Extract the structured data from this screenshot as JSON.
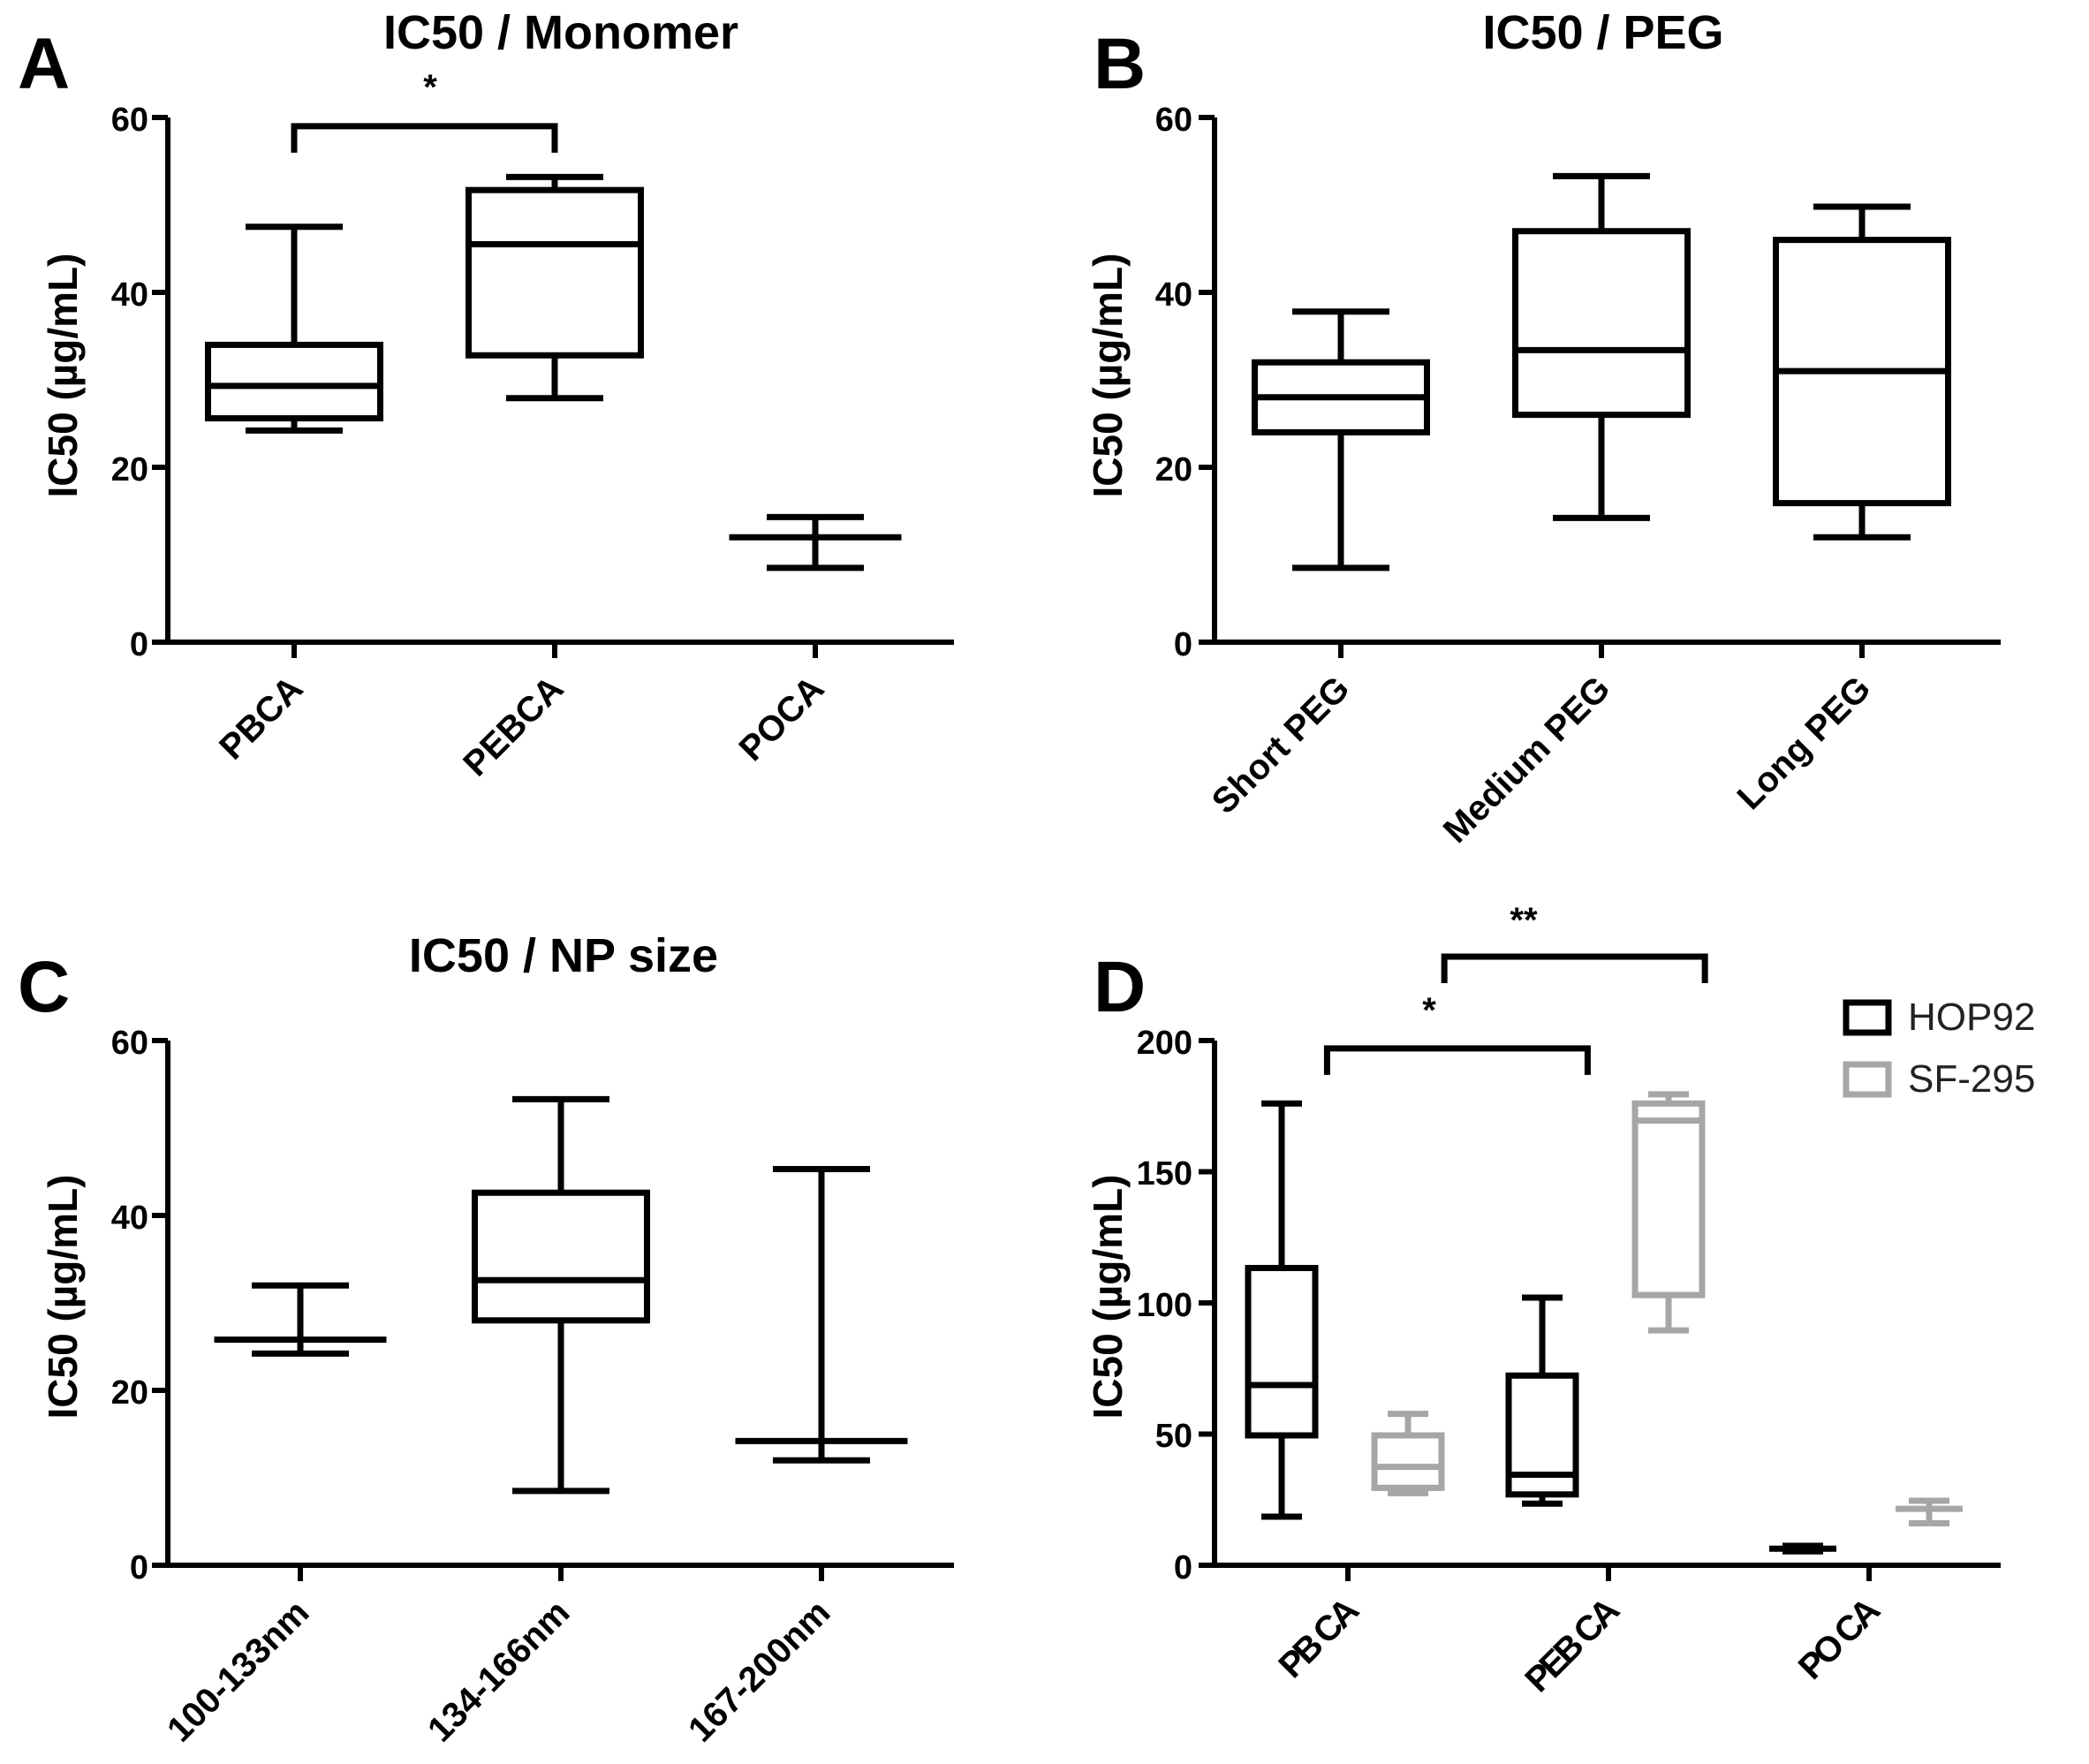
{
  "chart_data": [
    {
      "type": "box",
      "panel_label": "A",
      "title": "IC50 / Monomer",
      "ylabel": "IC50  (µg/mL)",
      "ylim": [
        0,
        60
      ],
      "yticks": [
        "0",
        "20",
        "40",
        "60"
      ],
      "categories": [
        "PBCA",
        "PEBCA",
        "POCA"
      ],
      "series": [
        {
          "name": "",
          "color": "#000000",
          "boxes": [
            {
              "min": 24.2,
              "q1": 25.6,
              "median": 29.3,
              "q3": 34.0,
              "max": 47.5
            },
            {
              "min": 27.9,
              "q1": 32.8,
              "median": 45.5,
              "q3": 51.7,
              "max": 53.2
            },
            {
              "min": 8.5,
              "q1": 12.0,
              "median": 12.0,
              "q3": 12.0,
              "max": 14.3
            }
          ]
        }
      ],
      "significance": [
        {
          "from": 0,
          "to": 1,
          "label": "*",
          "level": 59.0
        }
      ]
    },
    {
      "type": "box",
      "panel_label": "B",
      "title": "IC50 / PEG",
      "ylabel": "IC50  (µg/mL)",
      "ylim": [
        0,
        60
      ],
      "yticks": [
        "0",
        "20",
        "40",
        "60"
      ],
      "categories": [
        "Short PEG",
        "Medium PEG",
        "Long PEG"
      ],
      "series": [
        {
          "name": "",
          "color": "#000000",
          "boxes": [
            {
              "min": 8.5,
              "q1": 24.0,
              "median": 28.0,
              "q3": 32.0,
              "max": 37.8
            },
            {
              "min": 14.2,
              "q1": 26.0,
              "median": 33.4,
              "q3": 47.0,
              "max": 53.3
            },
            {
              "min": 12.0,
              "q1": 15.9,
              "median": 31.0,
              "q3": 46.0,
              "max": 49.8
            }
          ]
        }
      ],
      "significance": []
    },
    {
      "type": "box",
      "panel_label": "C",
      "title": "IC50 / NP size",
      "ylabel": "IC50  (µg/mL)",
      "ylim": [
        0,
        60
      ],
      "yticks": [
        "0",
        "20",
        "40",
        "60"
      ],
      "categories": [
        "100-133nm",
        "134-166nm",
        "167-200nm"
      ],
      "series": [
        {
          "name": "",
          "color": "#000000",
          "boxes": [
            {
              "min": 24.2,
              "q1": 25.8,
              "median": 25.8,
              "q3": 25.8,
              "max": 32.0
            },
            {
              "min": 8.5,
              "q1": 28.0,
              "median": 32.6,
              "q3": 42.6,
              "max": 53.3
            },
            {
              "min": 12.0,
              "q1": 14.2,
              "median": 14.2,
              "q3": 14.2,
              "max": 45.3
            }
          ]
        }
      ],
      "significance": []
    },
    {
      "type": "box",
      "panel_label": "D",
      "title": "",
      "ylabel": "IC50  (µg/mL)",
      "ylim": [
        0,
        200
      ],
      "yticks": [
        "0",
        "50",
        "100",
        "150",
        "200"
      ],
      "categories": [
        "PB CA",
        "PEB CA",
        "PO CA"
      ],
      "series": [
        {
          "name": "HOP92",
          "color": "#000000",
          "boxes": [
            {
              "min": 18.5,
              "q1": 49.5,
              "median": 68.7,
              "q3": 113.3,
              "max": 176.0
            },
            {
              "min": 23.5,
              "q1": 27.0,
              "median": 34.5,
              "q3": 72.3,
              "max": 102.0
            },
            {
              "min": 5.3,
              "q1": 6.3,
              "median": 6.3,
              "q3": 6.3,
              "max": 7.4
            }
          ]
        },
        {
          "name": "SF-295",
          "color": "#a6a6a6",
          "boxes": [
            {
              "min": 27.5,
              "q1": 29.5,
              "median": 37.5,
              "q3": 49.5,
              "max": 57.7
            },
            {
              "min": 89.5,
              "q1": 103.0,
              "median": 169.5,
              "q3": 176.0,
              "max": 179.5
            },
            {
              "min": 16.0,
              "q1": 21.5,
              "median": 21.5,
              "q3": 21.5,
              "max": 24.6
            }
          ]
        }
      ],
      "legend": [
        "HOP92",
        "SF-295"
      ],
      "significance": [
        {
          "from_x": 0.42,
          "to_x": 1.42,
          "label": "*",
          "level": 197
        },
        {
          "from_x": 0.87,
          "to_x": 1.87,
          "label": "**",
          "level": 232
        }
      ]
    }
  ]
}
